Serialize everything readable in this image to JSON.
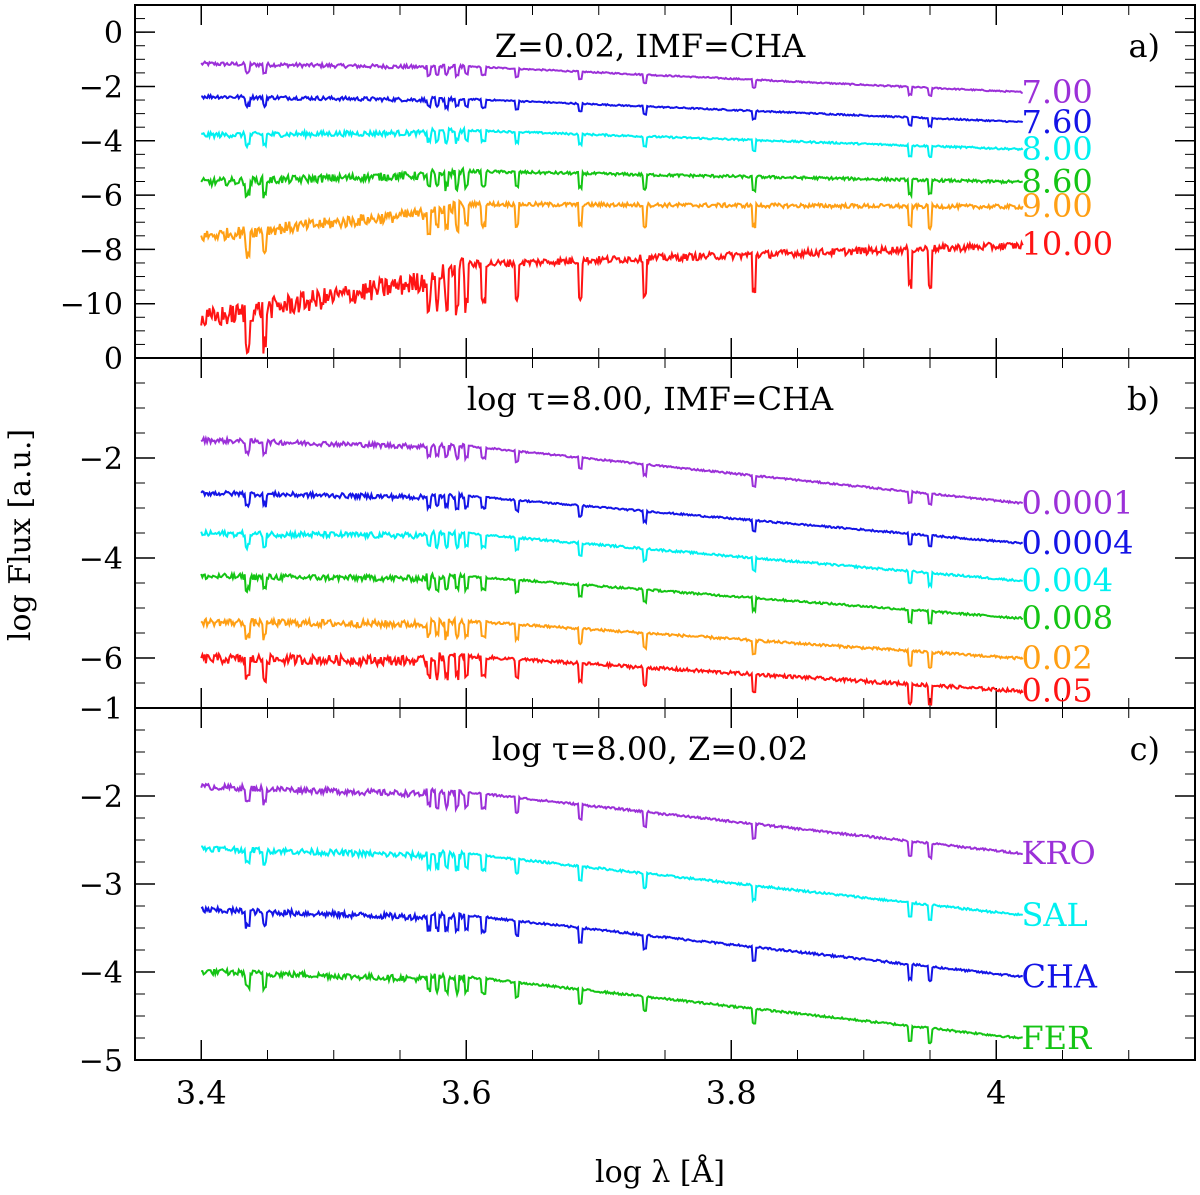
{
  "figure": {
    "ylabel": "log Flux [a.u.]",
    "xlabel": "log λ [Å]",
    "x_ticks": [
      3.4,
      3.6,
      3.8,
      4
    ],
    "x_tick_labels": [
      "3.4",
      "3.6",
      "3.8",
      "4"
    ],
    "xlim": [
      3.35,
      4.15
    ]
  },
  "colors": {
    "violet": "#9b30d8",
    "blue": "#1414e6",
    "cyan": "#00f0f0",
    "green": "#14c414",
    "orange": "#ff9f14",
    "red": "#ff1414"
  },
  "chart_data": [
    {
      "panel": "a",
      "type": "line",
      "title": "Z=0.02,  IMF=CHA",
      "panel_label": "a)",
      "ylim": [
        -12,
        1
      ],
      "y_ticks": [
        0,
        -2,
        -4,
        -6,
        -8,
        -10
      ],
      "y_tick_labels": [
        "0",
        "−2",
        "−4",
        "−6",
        "−8",
        "−10"
      ],
      "series": [
        {
          "name": "7.00",
          "color": "violet",
          "start": -1.1,
          "bump": -1.25,
          "end": -2.2,
          "noise": 0.15,
          "uv_depth": 0.2
        },
        {
          "name": "7.60",
          "color": "blue",
          "start": -2.3,
          "bump": -2.45,
          "end": -3.3,
          "noise": 0.15,
          "uv_depth": 0.25
        },
        {
          "name": "8.00",
          "color": "cyan",
          "start": -3.7,
          "bump": -3.6,
          "end": -4.3,
          "noise": 0.2,
          "uv_depth": 0.35
        },
        {
          "name": "8.60",
          "color": "green",
          "start": -5.4,
          "bump": -5.1,
          "end": -5.5,
          "noise": 0.3,
          "uv_depth": 0.45
        },
        {
          "name": "9.00",
          "color": "orange",
          "start": -7.3,
          "bump": -6.3,
          "end": -6.4,
          "noise": 0.45,
          "uv_depth": 0.9
        },
        {
          "name": "10.00",
          "color": "red",
          "start": -10.2,
          "bump": -8.5,
          "end": -7.8,
          "noise": 0.8,
          "uv_depth": 1.6
        }
      ]
    },
    {
      "panel": "b",
      "type": "line",
      "title": "log  τ=8.00,  IMF=CHA",
      "panel_label": "b)",
      "ylim": [
        -7,
        0
      ],
      "y_ticks": [
        0,
        -2,
        -4,
        -6
      ],
      "y_tick_labels": [
        "0",
        "−2",
        "−4",
        "−6"
      ],
      "series": [
        {
          "name": "0.0001",
          "color": "violet",
          "start": -1.6,
          "bump": -1.75,
          "end": -2.9,
          "noise": 0.1,
          "uv_depth": 0.15
        },
        {
          "name": "0.0004",
          "color": "blue",
          "start": -2.65,
          "bump": -2.75,
          "end": -3.7,
          "noise": 0.1,
          "uv_depth": 0.2
        },
        {
          "name": "0.004",
          "color": "cyan",
          "start": -3.45,
          "bump": -3.5,
          "end": -4.45,
          "noise": 0.12,
          "uv_depth": 0.25
        },
        {
          "name": "0.008",
          "color": "green",
          "start": -4.3,
          "bump": -4.35,
          "end": -5.2,
          "noise": 0.12,
          "uv_depth": 0.3
        },
        {
          "name": "0.02",
          "color": "orange",
          "start": -5.2,
          "bump": -5.25,
          "end": -6.0,
          "noise": 0.15,
          "uv_depth": 0.35
        },
        {
          "name": "0.05",
          "color": "red",
          "start": -5.9,
          "bump": -5.95,
          "end": -6.65,
          "noise": 0.2,
          "uv_depth": 0.5
        }
      ]
    },
    {
      "panel": "c",
      "type": "line",
      "title": "log  τ=8.00,  Z=0.02",
      "panel_label": "c)",
      "ylim": [
        -5,
        -1
      ],
      "y_ticks": [
        -1,
        -2,
        -3,
        -4,
        -5
      ],
      "y_tick_labels": [
        "−1",
        "−2",
        "−3",
        "−4",
        "−5"
      ],
      "series": [
        {
          "name": "KRO",
          "color": "violet",
          "start": -1.85,
          "bump": -1.95,
          "end": -2.65,
          "noise": 0.07,
          "uv_depth": 0.2
        },
        {
          "name": "SAL",
          "color": "cyan",
          "start": -2.55,
          "bump": -2.65,
          "end": -3.35,
          "noise": 0.07,
          "uv_depth": 0.2
        },
        {
          "name": "CHA",
          "color": "blue",
          "start": -3.25,
          "bump": -3.35,
          "end": -4.05,
          "noise": 0.07,
          "uv_depth": 0.2
        },
        {
          "name": "FER",
          "color": "green",
          "start": -3.95,
          "bump": -4.05,
          "end": -4.75,
          "noise": 0.07,
          "uv_depth": 0.2
        }
      ]
    }
  ]
}
